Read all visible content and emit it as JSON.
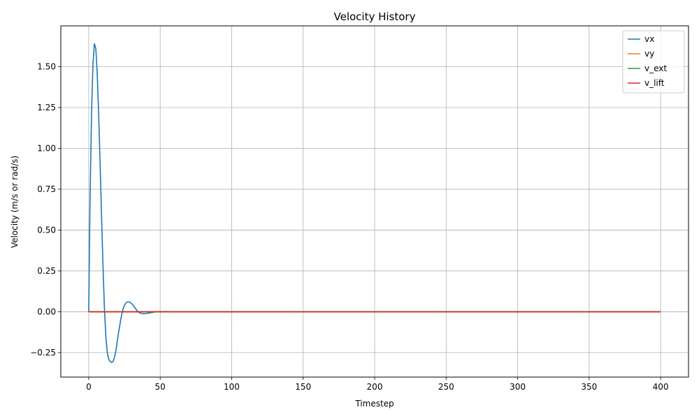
{
  "chart_data": {
    "type": "line",
    "title": "Velocity History",
    "xlabel": "Timestep",
    "ylabel": "Velocity (m/s or rad/s)",
    "xlim": [
      -19.5,
      419.5
    ],
    "ylim": [
      -0.4,
      1.75
    ],
    "xticks": [
      0,
      50,
      100,
      150,
      200,
      250,
      300,
      350,
      400
    ],
    "yticks": [
      -0.25,
      0.0,
      0.25,
      0.5,
      0.75,
      1.0,
      1.25,
      1.5
    ],
    "ytick_labels": [
      "−0.25",
      "0.00",
      "0.25",
      "0.50",
      "0.75",
      "1.00",
      "1.25",
      "1.50"
    ],
    "grid": true,
    "legend": "top-right",
    "series": [
      {
        "name": "vx",
        "color": "#1f77b4",
        "x": [
          0,
          1,
          2,
          3,
          4,
          5,
          6,
          7,
          8,
          9,
          10,
          11,
          12,
          13,
          14,
          15,
          16,
          17,
          18,
          19,
          20,
          21,
          22,
          23,
          24,
          25,
          26,
          27,
          28,
          29,
          30,
          31,
          32,
          33,
          34,
          35,
          36,
          37,
          38,
          39,
          40,
          42,
          44,
          46,
          48,
          50,
          55,
          60,
          400
        ],
        "y": [
          0.0,
          0.72,
          1.22,
          1.52,
          1.64,
          1.61,
          1.45,
          1.2,
          0.9,
          0.58,
          0.28,
          0.02,
          -0.15,
          -0.25,
          -0.29,
          -0.305,
          -0.31,
          -0.305,
          -0.28,
          -0.24,
          -0.18,
          -0.12,
          -0.07,
          -0.02,
          0.015,
          0.04,
          0.053,
          0.06,
          0.06,
          0.057,
          0.05,
          0.04,
          0.028,
          0.016,
          0.005,
          -0.003,
          -0.008,
          -0.011,
          -0.012,
          -0.012,
          -0.011,
          -0.008,
          -0.005,
          -0.002,
          0.0,
          0.001,
          0.001,
          0.0,
          0.0
        ]
      },
      {
        "name": "vy",
        "color": "#ff7f0e",
        "x": [
          0,
          400
        ],
        "y": [
          0.0,
          0.0
        ]
      },
      {
        "name": "v_ext",
        "color": "#2ca02c",
        "x": [
          0,
          400
        ],
        "y": [
          0.0,
          0.0
        ]
      },
      {
        "name": "v_lift",
        "color": "#d62728",
        "x": [
          0,
          400
        ],
        "y": [
          0.0,
          0.0
        ]
      }
    ]
  }
}
